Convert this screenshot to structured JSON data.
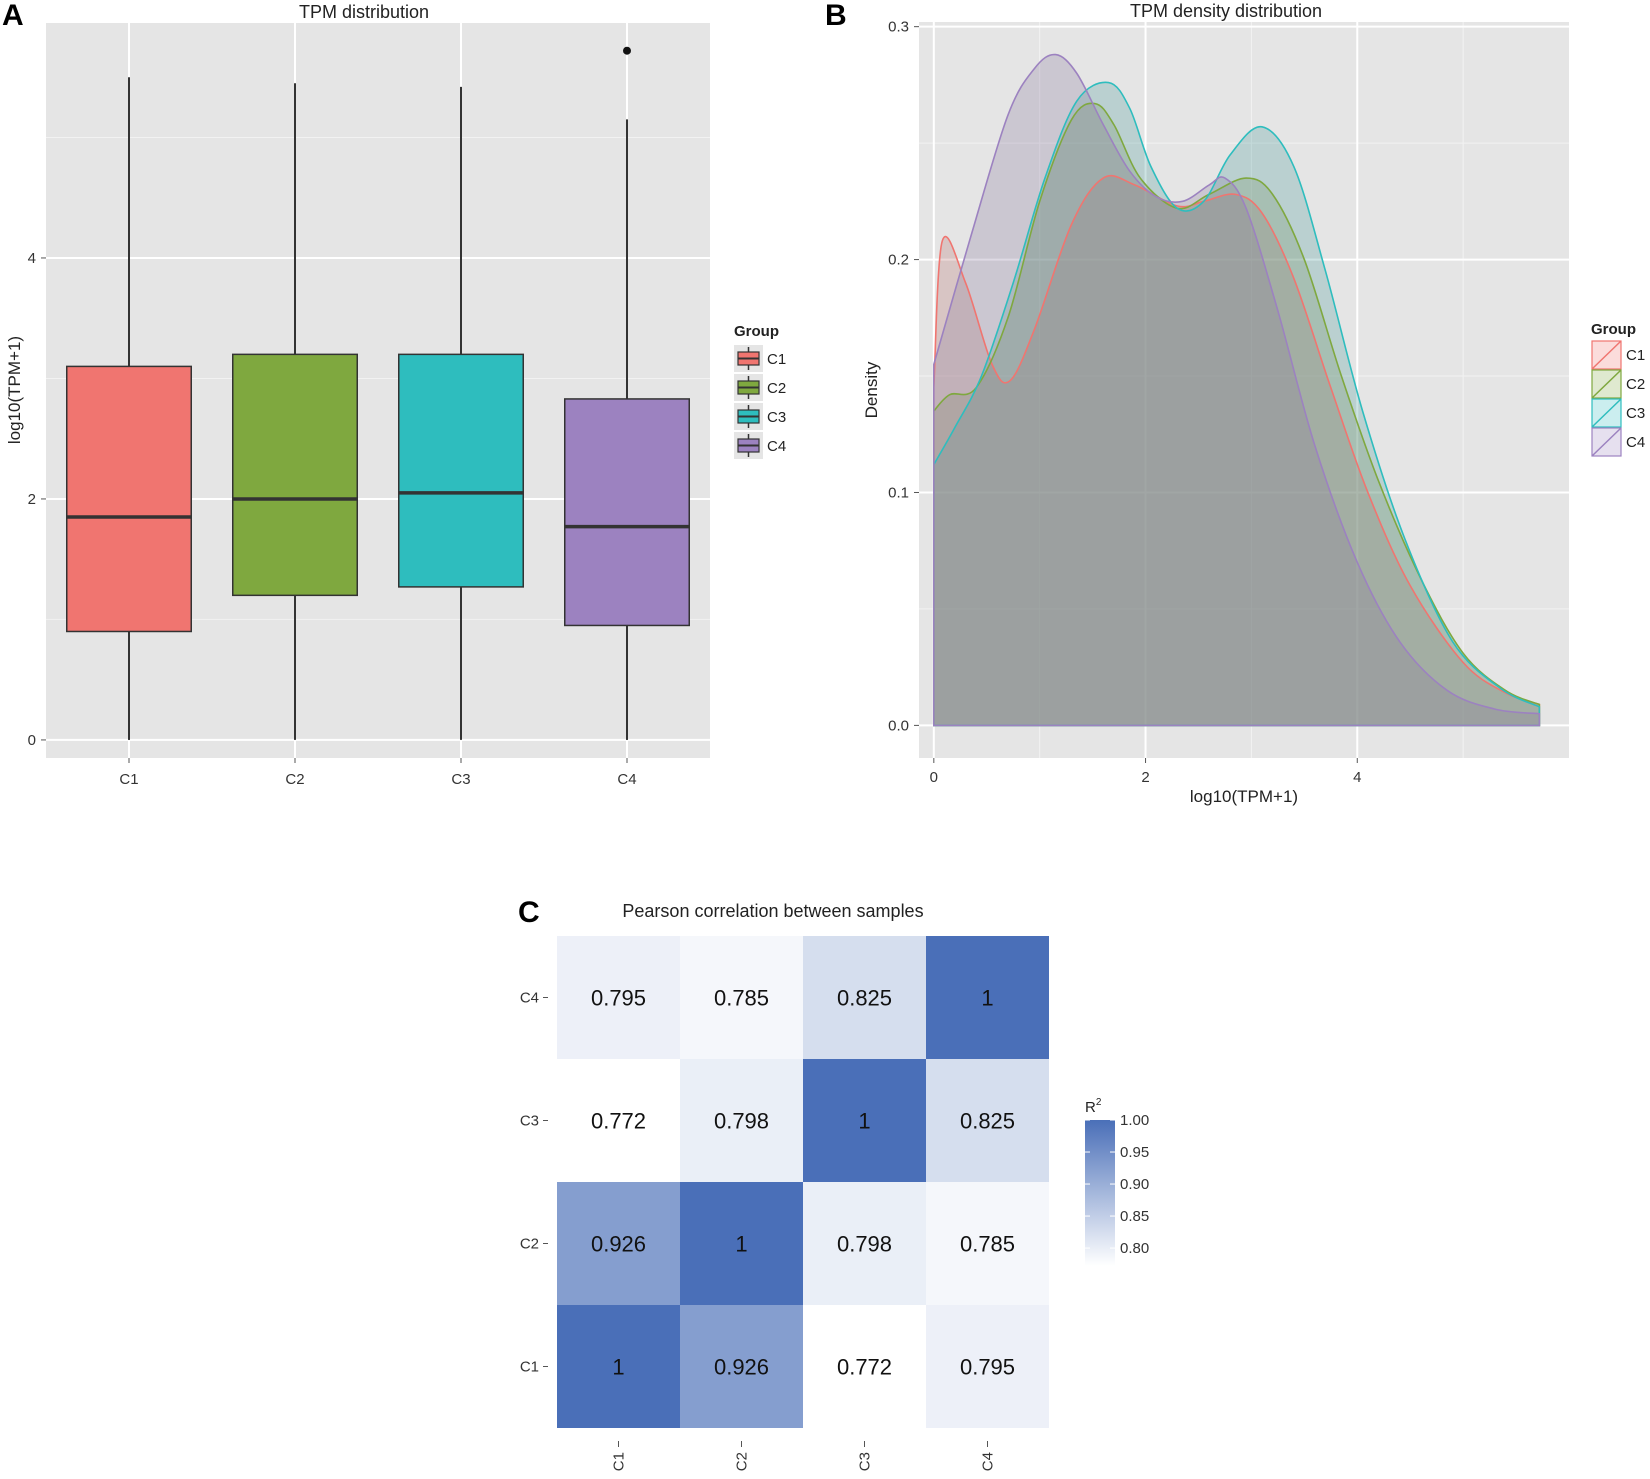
{
  "chart_data": [
    {
      "panel": "A",
      "type": "box",
      "title": "TPM distribution",
      "xlabel": "",
      "ylabel": "log10(TPM+1)",
      "ylim": [
        -0.15,
        5.95
      ],
      "yticks": [
        0,
        2,
        4
      ],
      "ytick_labels": [
        "0",
        "2",
        "4"
      ],
      "grid": true,
      "categories": [
        "C1",
        "C2",
        "C3",
        "C4"
      ],
      "colors": [
        "#F07570",
        "#7FA83F",
        "#2EBDBE",
        "#9C82C0"
      ],
      "boxes": [
        {
          "name": "C1",
          "whisker_low": 0,
          "q1": 0.9,
          "median": 1.85,
          "q3": 3.1,
          "whisker_high": 5.5,
          "outliers": []
        },
        {
          "name": "C2",
          "whisker_low": 0,
          "q1": 1.2,
          "median": 2.0,
          "q3": 3.2,
          "whisker_high": 5.45,
          "outliers": []
        },
        {
          "name": "C3",
          "whisker_low": 0,
          "q1": 1.27,
          "median": 2.05,
          "q3": 3.2,
          "whisker_high": 5.42,
          "outliers": []
        },
        {
          "name": "C4",
          "whisker_low": 0,
          "q1": 0.95,
          "median": 1.77,
          "q3": 2.83,
          "whisker_high": 5.15,
          "outliers": [
            5.72
          ]
        }
      ],
      "legend": {
        "title": "Group",
        "entries": [
          "C1",
          "C2",
          "C3",
          "C4"
        ],
        "position": "right"
      }
    },
    {
      "panel": "B",
      "type": "area",
      "title": "TPM density distribution",
      "xlabel": "log10(TPM+1)",
      "ylabel": "Density",
      "xlim": [
        -0.14,
        6.0
      ],
      "ylim": [
        -0.014,
        0.302
      ],
      "xticks": [
        0,
        2,
        4
      ],
      "xtick_labels": [
        "0",
        "2",
        "4"
      ],
      "yticks": [
        0.0,
        0.1,
        0.2,
        0.3
      ],
      "ytick_labels": [
        "0.0",
        "0.1",
        "0.2",
        "0.3"
      ],
      "grid": true,
      "series": [
        {
          "name": "C1",
          "color": "#F07570",
          "x": [
            0,
            0.08,
            0.3,
            0.55,
            0.72,
            0.95,
            1.3,
            1.6,
            1.9,
            2.3,
            2.55,
            2.85,
            3.1,
            3.4,
            3.75,
            4.1,
            4.5,
            5.0,
            5.4,
            5.72
          ],
          "y": [
            0.145,
            0.208,
            0.19,
            0.155,
            0.148,
            0.17,
            0.215,
            0.235,
            0.232,
            0.223,
            0.225,
            0.228,
            0.22,
            0.192,
            0.145,
            0.1,
            0.06,
            0.027,
            0.014,
            0.009
          ]
        },
        {
          "name": "C2",
          "color": "#7FA83F",
          "x": [
            0,
            0.15,
            0.4,
            0.7,
            1.0,
            1.3,
            1.52,
            1.7,
            1.95,
            2.3,
            2.6,
            2.95,
            3.2,
            3.5,
            3.85,
            4.2,
            4.6,
            5.0,
            5.4,
            5.72
          ],
          "y": [
            0.135,
            0.142,
            0.145,
            0.175,
            0.225,
            0.26,
            0.267,
            0.258,
            0.235,
            0.222,
            0.228,
            0.235,
            0.228,
            0.2,
            0.15,
            0.105,
            0.063,
            0.031,
            0.015,
            0.009
          ]
        },
        {
          "name": "C3",
          "color": "#2EBDBE",
          "x": [
            0,
            0.2,
            0.45,
            0.75,
            1.05,
            1.35,
            1.65,
            1.85,
            2.05,
            2.3,
            2.55,
            2.8,
            3.1,
            3.4,
            3.7,
            4.05,
            4.45,
            4.9,
            5.35,
            5.72
          ],
          "y": [
            0.112,
            0.128,
            0.15,
            0.19,
            0.235,
            0.268,
            0.276,
            0.265,
            0.24,
            0.222,
            0.225,
            0.245,
            0.257,
            0.24,
            0.195,
            0.135,
            0.08,
            0.036,
            0.016,
            0.008
          ]
        },
        {
          "name": "C4",
          "color": "#9C82C0",
          "x": [
            0,
            0.35,
            0.7,
            0.95,
            1.15,
            1.35,
            1.6,
            1.85,
            2.1,
            2.35,
            2.6,
            2.75,
            2.95,
            3.25,
            3.6,
            4.0,
            4.4,
            4.85,
            5.3,
            5.72
          ],
          "y": [
            0.155,
            0.21,
            0.262,
            0.282,
            0.288,
            0.28,
            0.258,
            0.238,
            0.227,
            0.225,
            0.232,
            0.235,
            0.222,
            0.178,
            0.12,
            0.07,
            0.036,
            0.015,
            0.007,
            0.005
          ]
        }
      ],
      "legend": {
        "title": "Group",
        "entries": [
          "C1",
          "C2",
          "C3",
          "C4"
        ],
        "position": "right"
      }
    },
    {
      "panel": "C",
      "type": "heatmap",
      "title": "Pearson correlation between samples",
      "x_categories": [
        "C1",
        "C2",
        "C3",
        "C4"
      ],
      "y_categories": [
        "C1",
        "C2",
        "C3",
        "C4"
      ],
      "values": [
        [
          1,
          0.926,
          0.772,
          0.795
        ],
        [
          0.926,
          1,
          0.798,
          0.785
        ],
        [
          0.772,
          0.798,
          1,
          0.825
        ],
        [
          0.795,
          0.785,
          0.825,
          1
        ]
      ],
      "value_labels": [
        [
          "1",
          "0.926",
          "0.772",
          "0.795"
        ],
        [
          "0.926",
          "1",
          "0.798",
          "0.785"
        ],
        [
          "0.772",
          "0.798",
          "1",
          "0.825"
        ],
        [
          "0.795",
          "0.785",
          "0.825",
          "1"
        ]
      ],
      "color_low": "#FFFFFF",
      "color_high": "#4A6FB8",
      "value_range": [
        0.772,
        1.0
      ],
      "colorbar": {
        "title": "R",
        "title_superscript": "2",
        "ticks": [
          1.0,
          0.95,
          0.9,
          0.85,
          0.8
        ],
        "tick_labels": [
          "1.00",
          "0.95",
          "0.90",
          "0.85",
          "0.80"
        ]
      }
    }
  ],
  "colors": {
    "panel_bg": "#E5E5E5",
    "grid": "#FFFFFF",
    "density_fill": "rgba(160,160,160,0.55)"
  }
}
